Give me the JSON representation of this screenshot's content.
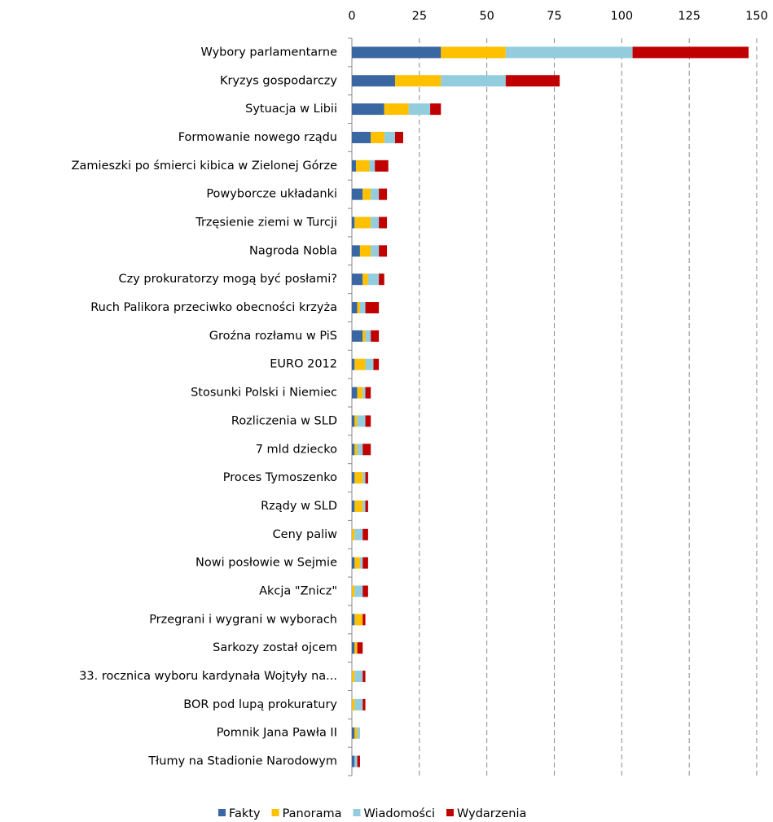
{
  "chart_data": {
    "type": "stacked-bar-horizontal",
    "categories": [
      "Wybory parlamentarne",
      "Kryzys gospodarczy",
      "Sytuacja w Libii",
      "Formowanie nowego rządu",
      "Zamieszki po śmierci kibica w Zielonej Górze",
      "Powyborcze układanki",
      "Trzęsienie ziemi w Turcji",
      "Nagroda Nobla",
      "Czy prokuratorzy mogą być posłami?",
      "Ruch Palikora przeciwko obecności krzyża",
      "Groźna rozłamu w PiS",
      "EURO 2012",
      "Stosunki Polski i Niemiec",
      "Rozliczenia w SLD",
      "7 mld dziecko",
      "Proces Tymoszenko",
      "Rządy w SLD",
      "Ceny paliw",
      "Nowi posłowie w Sejmie",
      "Akcja \"Znicz\"",
      "Przegrani i wygrani w wyborach",
      "Sarkozy został ojcem",
      "33. rocznica wyboru kardynała Wojtyły na...",
      "BOR pod lupą prokuratury",
      "Pomnik Jana Pawła II",
      "Tłumy na Stadionie Narodowym"
    ],
    "series": [
      {
        "name": "Fakty",
        "color": "#3a67a1",
        "values": [
          33,
          16,
          12,
          7,
          1.5,
          4,
          1,
          3,
          4,
          2,
          4,
          1,
          2,
          1,
          1,
          1,
          1,
          0,
          1,
          0,
          1,
          1,
          0,
          0,
          1,
          1
        ]
      },
      {
        "name": "Panorama",
        "color": "#ffc000",
        "values": [
          24,
          17,
          9,
          5,
          5,
          3,
          6,
          4,
          2,
          1,
          1,
          4,
          2,
          1,
          1,
          3,
          3,
          1,
          2,
          1,
          3,
          1,
          1,
          1,
          1,
          0
        ]
      },
      {
        "name": "Wiadomości",
        "color": "#93cddd",
        "values": [
          47,
          24,
          8,
          4,
          2,
          3,
          3,
          3,
          4,
          2,
          2,
          3,
          1,
          3,
          2,
          1,
          1,
          3,
          1,
          3,
          0,
          0,
          3,
          3,
          1,
          1
        ]
      },
      {
        "name": "Wydarzenia",
        "color": "#c00000",
        "values": [
          43,
          20,
          4,
          3,
          5,
          3,
          3,
          3,
          2,
          5,
          3,
          2,
          2,
          2,
          3,
          1,
          1,
          2,
          2,
          2,
          1,
          2,
          1,
          1,
          0,
          1
        ]
      }
    ],
    "xlim": [
      0,
      150
    ],
    "xticks": [
      0,
      25,
      50,
      75,
      100,
      125,
      150
    ],
    "grid": true,
    "legend": "bottom"
  }
}
